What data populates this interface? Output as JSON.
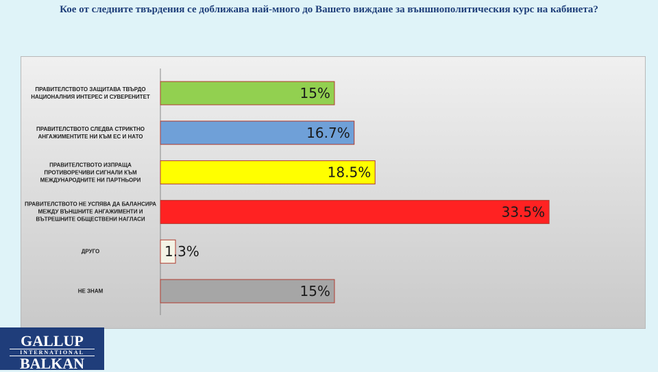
{
  "chart_data": {
    "type": "bar",
    "orientation": "horizontal",
    "title": "Кое от следните твърдения се доближава най-много до Вашето виждане за външнополитическия курс на кабинета?",
    "categories": [
      "ПРАВИТЕЛСТВОТО ЗАЩИТАВА ТВЪРДО НАЦИОНАЛНИЯ ИНТЕРЕС И СУВЕРЕНИТЕТ",
      "ПРАВИТЕЛСТВОТО СЛЕДВА СТРИКТНО АНГАЖИМЕНТИТЕ НИ КЪМ ЕС И НАТО",
      "ПРАВИТЕЛСТВОТО ИЗПРАЩА ПРОТИВОРЕЧИВИ СИГНАЛИ КЪМ МЕЖДУНАРОДНИТЕ НИ ПАРТНЬОРИ",
      "ПРАВИТЕЛСТВОТО НЕ УСПЯВА ДА БАЛАНСИРА МЕЖДУ ВЪНШНИТЕ АНГАЖИМЕНТИ И ВЪТРЕШНИТЕ ОБЩЕСТВЕНИ НАГЛАСИ",
      "ДРУГО",
      "НЕ ЗНАМ"
    ],
    "values": [
      15,
      16.7,
      18.5,
      33.5,
      1.3,
      15
    ],
    "value_labels": [
      "15%",
      "16.7%",
      "18.5%",
      "33.5%",
      "1.3%",
      "15%"
    ],
    "colors": [
      "#92d050",
      "#6fa0d8",
      "#ffff00",
      "#ff2222",
      "#f4f4e6",
      "#a6a6a6"
    ]
  },
  "logo": {
    "line1": "GALLUP",
    "line2": "INTERNATIONAL",
    "line3": "BALKAN"
  }
}
